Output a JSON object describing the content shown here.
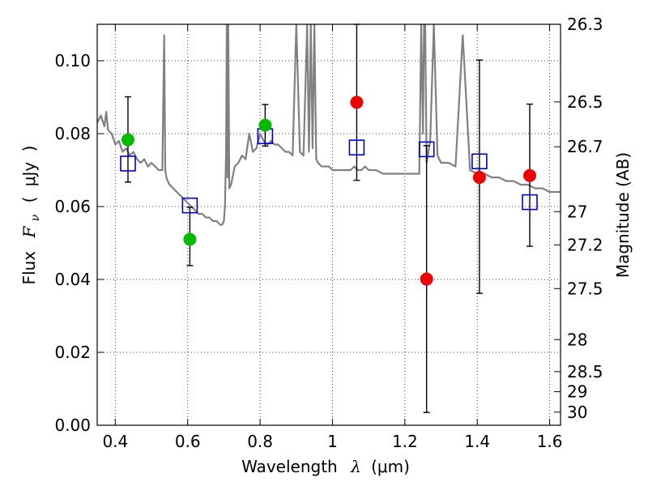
{
  "chart_data": {
    "type": "scatter",
    "xlabel": {
      "text": "Wavelength",
      "symbol": "λ",
      "unit": "(μm)"
    },
    "ylabel": {
      "text": "Flux",
      "symbol": "F",
      "sub": "ν",
      "unit": "μJy"
    },
    "y2label": "Magnitude (AB)",
    "xlim": [
      0.35,
      1.63
    ],
    "ylim": [
      0.0,
      0.11
    ],
    "grid": true,
    "x_ticks": [
      "0.4",
      "0.6",
      "0.8",
      "1",
      "1.2",
      "1.4",
      "1.6"
    ],
    "y_ticks": [
      "0.00",
      "0.02",
      "0.04",
      "0.06",
      "0.08",
      "0.10"
    ],
    "y2_ticks": [
      {
        "label": "26.3",
        "flux": 0.11
      },
      {
        "label": "26.5",
        "flux": 0.0887
      },
      {
        "label": "26.7",
        "flux": 0.0764
      },
      {
        "label": "27",
        "flux": 0.0586
      },
      {
        "label": "27.2",
        "flux": 0.0495
      },
      {
        "label": "27.5",
        "flux": 0.0375
      },
      {
        "label": "28",
        "flux": 0.0235
      },
      {
        "label": "28.5",
        "flux": 0.0147
      },
      {
        "label": "29",
        "flux": 0.0092
      },
      {
        "label": "30",
        "flux": 0.0036
      }
    ],
    "series": [
      {
        "name": "model_spectrum",
        "kind": "line",
        "color": "#808080",
        "x": [
          0.35,
          0.36,
          0.37,
          0.375,
          0.38,
          0.39,
          0.4,
          0.41,
          0.42,
          0.43,
          0.44,
          0.45,
          0.46,
          0.47,
          0.48,
          0.49,
          0.5,
          0.51,
          0.52,
          0.53,
          0.535,
          0.538,
          0.541,
          0.545,
          0.55,
          0.56,
          0.57,
          0.58,
          0.59,
          0.6,
          0.61,
          0.62,
          0.63,
          0.64,
          0.65,
          0.66,
          0.67,
          0.68,
          0.69,
          0.695,
          0.7,
          0.703,
          0.706,
          0.708,
          0.71,
          0.712,
          0.715,
          0.72,
          0.73,
          0.74,
          0.75,
          0.76,
          0.77,
          0.78,
          0.79,
          0.8,
          0.81,
          0.82,
          0.83,
          0.84,
          0.85,
          0.86,
          0.87,
          0.88,
          0.89,
          0.9,
          0.91,
          0.92,
          0.93,
          0.935,
          0.94,
          0.945,
          0.95,
          0.955,
          0.96,
          0.97,
          0.98,
          0.99,
          1.0,
          1.01,
          1.02,
          1.03,
          1.04,
          1.05,
          1.06,
          1.07,
          1.08,
          1.09,
          1.1,
          1.12,
          1.14,
          1.16,
          1.18,
          1.2,
          1.22,
          1.24,
          1.245,
          1.25,
          1.253,
          1.256,
          1.26,
          1.27,
          1.28,
          1.29,
          1.3,
          1.32,
          1.34,
          1.36,
          1.38,
          1.4,
          1.42,
          1.44,
          1.46,
          1.48,
          1.5,
          1.52,
          1.54,
          1.56,
          1.58,
          1.6,
          1.62,
          1.63
        ],
        "y": [
          0.083,
          0.085,
          0.082,
          0.086,
          0.081,
          0.08,
          0.077,
          0.078,
          0.075,
          0.076,
          0.074,
          0.075,
          0.073,
          0.072,
          0.073,
          0.071,
          0.072,
          0.071,
          0.07,
          0.07,
          0.107,
          0.07,
          0.068,
          0.067,
          0.066,
          0.065,
          0.064,
          0.063,
          0.062,
          0.061,
          0.06,
          0.059,
          0.058,
          0.058,
          0.057,
          0.057,
          0.056,
          0.056,
          0.055,
          0.055,
          0.056,
          0.06,
          0.075,
          0.11,
          0.068,
          0.11,
          0.065,
          0.066,
          0.071,
          0.072,
          0.074,
          0.073,
          0.08,
          0.075,
          0.076,
          0.08,
          0.078,
          0.077,
          0.078,
          0.077,
          0.077,
          0.076,
          0.075,
          0.075,
          0.074,
          0.11,
          0.075,
          0.074,
          0.11,
          0.075,
          0.11,
          0.076,
          0.11,
          0.073,
          0.072,
          0.071,
          0.071,
          0.071,
          0.07,
          0.07,
          0.07,
          0.07,
          0.07,
          0.07,
          0.071,
          0.07,
          0.07,
          0.071,
          0.07,
          0.07,
          0.069,
          0.069,
          0.069,
          0.069,
          0.069,
          0.069,
          0.11,
          0.08,
          0.11,
          0.11,
          0.072,
          0.078,
          0.11,
          0.074,
          0.072,
          0.072,
          0.071,
          0.107,
          0.07,
          0.069,
          0.069,
          0.068,
          0.068,
          0.067,
          0.067,
          0.066,
          0.066,
          0.065,
          0.065,
          0.064,
          0.064,
          0.064
        ]
      },
      {
        "name": "model_fluxes",
        "kind": "scatter",
        "marker": "open-square",
        "color": "#0000cc",
        "x": [
          0.435,
          0.606,
          0.814,
          1.067,
          1.26,
          1.406,
          1.545
        ],
        "y": [
          0.0718,
          0.0603,
          0.0793,
          0.0762,
          0.0757,
          0.0724,
          0.0612
        ]
      },
      {
        "name": "observed_green",
        "kind": "scatter",
        "marker": "filled-circle",
        "color": "#00bb00",
        "x": [
          0.435,
          0.606,
          0.814
        ],
        "y": [
          0.0783,
          0.051,
          0.0823
        ],
        "err_lo": [
          0.0116,
          0.0072,
          0.0057
        ],
        "err_hi": [
          0.0118,
          0.0088,
          0.0057
        ]
      },
      {
        "name": "observed_red",
        "kind": "scatter",
        "marker": "filled-circle",
        "color": "#ee0000",
        "x": [
          1.067,
          1.26,
          1.406,
          1.545
        ],
        "y": [
          0.0886,
          0.0401,
          0.068,
          0.0685
        ],
        "err_lo": [
          0.0214,
          0.0366,
          0.0318,
          0.0194
        ],
        "err_hi": [
          0.0214,
          0.0366,
          0.0322,
          0.0196
        ]
      }
    ]
  }
}
